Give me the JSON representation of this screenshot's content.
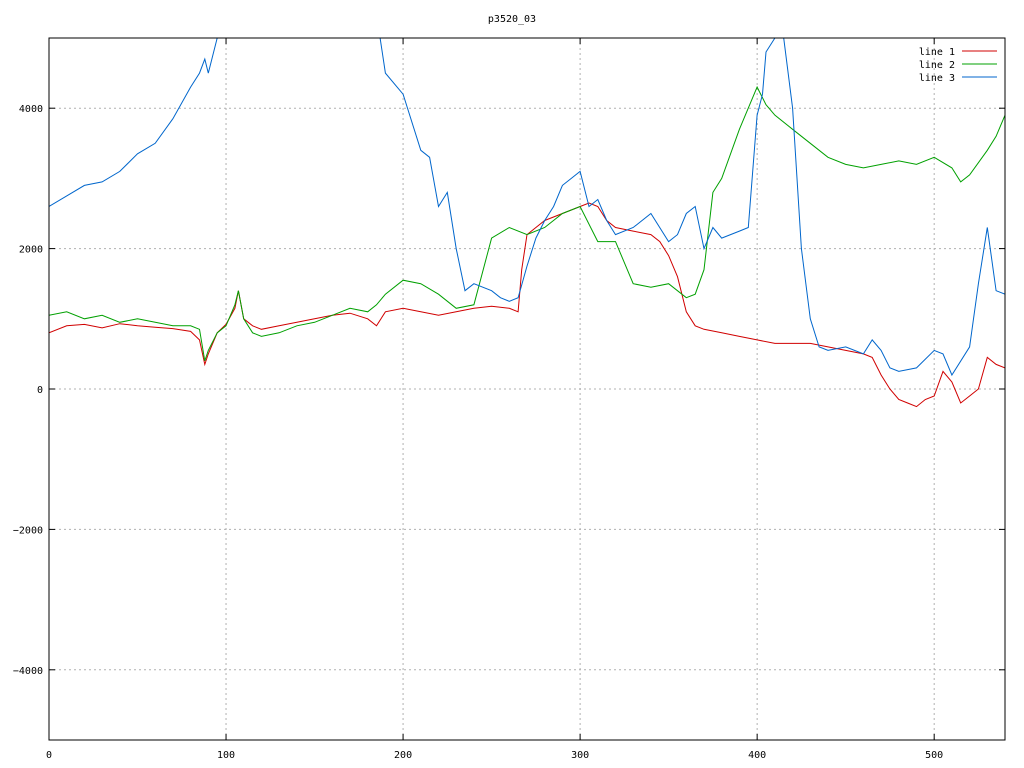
{
  "chart_data": {
    "type": "line",
    "title": "p3520_03",
    "xlabel": "",
    "ylabel": "",
    "xlim": [
      0,
      540
    ],
    "ylim": [
      -5000,
      5000
    ],
    "grid": true,
    "legend_position": "top-right",
    "x_ticks": [
      0,
      100,
      200,
      300,
      400,
      500
    ],
    "y_ticks": [
      -4000,
      -2000,
      0,
      2000,
      4000
    ],
    "x_tick_labels": [
      "0",
      "100",
      "200",
      "300",
      "400",
      "500"
    ],
    "y_tick_labels": [
      "−4000",
      "−2000",
      "0",
      "2000",
      "4000"
    ],
    "series": [
      {
        "name": "line 1",
        "color": "#d00000",
        "x": [
          0,
          10,
          20,
          30,
          40,
          50,
          60,
          70,
          80,
          85,
          88,
          90,
          95,
          100,
          105,
          107,
          110,
          115,
          120,
          130,
          140,
          150,
          160,
          170,
          180,
          185,
          190,
          200,
          210,
          220,
          230,
          240,
          250,
          260,
          265,
          267,
          270,
          275,
          280,
          290,
          295,
          300,
          305,
          310,
          315,
          320,
          330,
          340,
          345,
          350,
          355,
          360,
          365,
          370,
          380,
          390,
          400,
          410,
          420,
          430,
          440,
          450,
          460,
          465,
          470,
          475,
          480,
          485,
          490,
          495,
          500,
          505,
          510,
          515,
          520,
          525,
          530,
          535,
          540
        ],
        "y": [
          800,
          900,
          920,
          870,
          930,
          900,
          880,
          860,
          820,
          700,
          350,
          500,
          800,
          920,
          1150,
          1400,
          1000,
          900,
          850,
          900,
          950,
          1000,
          1050,
          1080,
          1000,
          900,
          1100,
          1150,
          1100,
          1050,
          1100,
          1150,
          1180,
          1150,
          1100,
          1700,
          2200,
          2300,
          2400,
          2500,
          2550,
          2600,
          2650,
          2600,
          2400,
          2300,
          2250,
          2200,
          2100,
          1900,
          1600,
          1100,
          900,
          850,
          800,
          750,
          700,
          650,
          650,
          650,
          600,
          550,
          500,
          450,
          200,
          0,
          -150,
          -200,
          -250,
          -150,
          -100,
          250,
          100,
          -200,
          -100,
          0,
          450,
          350,
          300
        ]
      },
      {
        "name": "line 2",
        "color": "#00a000",
        "x": [
          0,
          10,
          20,
          30,
          40,
          50,
          60,
          70,
          80,
          85,
          88,
          90,
          95,
          100,
          105,
          107,
          110,
          115,
          120,
          130,
          140,
          150,
          160,
          170,
          180,
          185,
          190,
          200,
          210,
          220,
          230,
          240,
          250,
          260,
          270,
          280,
          290,
          300,
          310,
          320,
          330,
          340,
          350,
          360,
          365,
          370,
          375,
          380,
          390,
          400,
          405,
          410,
          420,
          430,
          440,
          450,
          460,
          470,
          480,
          490,
          500,
          510,
          515,
          520,
          530,
          535,
          540
        ],
        "y": [
          1050,
          1100,
          1000,
          1050,
          950,
          1000,
          950,
          900,
          900,
          850,
          400,
          550,
          800,
          900,
          1200,
          1400,
          1000,
          800,
          750,
          800,
          900,
          950,
          1050,
          1150,
          1100,
          1200,
          1350,
          1550,
          1500,
          1350,
          1150,
          1200,
          2150,
          2300,
          2200,
          2300,
          2500,
          2600,
          2100,
          2100,
          1500,
          1450,
          1500,
          1300,
          1350,
          1700,
          2800,
          3000,
          3700,
          4300,
          4050,
          3900,
          3700,
          3500,
          3300,
          3200,
          3150,
          3200,
          3250,
          3200,
          3300,
          3150,
          2950,
          3050,
          3400,
          3600,
          3900
        ]
      },
      {
        "name": "line 3",
        "color": "#0066cc",
        "x": [
          0,
          10,
          20,
          30,
          40,
          50,
          60,
          70,
          80,
          85,
          88,
          90,
          95,
          100,
          105,
          110,
          115,
          120,
          130,
          140,
          150,
          160,
          170,
          180,
          185,
          187,
          190,
          200,
          210,
          215,
          220,
          225,
          230,
          235,
          240,
          250,
          255,
          260,
          265,
          270,
          275,
          280,
          285,
          290,
          295,
          300,
          305,
          310,
          315,
          320,
          330,
          340,
          350,
          355,
          360,
          365,
          370,
          375,
          380,
          390,
          395,
          400,
          403,
          405,
          410,
          415,
          420,
          425,
          430,
          435,
          440,
          450,
          460,
          465,
          470,
          475,
          480,
          490,
          500,
          505,
          510,
          520,
          525,
          530,
          535,
          540
        ],
        "y": [
          2600,
          2750,
          2900,
          2950,
          3100,
          3350,
          3500,
          3850,
          4300,
          4500,
          4700,
          4500,
          5000,
          5000,
          5000,
          5000,
          5000,
          5000,
          5000,
          5000,
          5000,
          5000,
          5000,
          5000,
          5000,
          5000,
          4500,
          4200,
          3400,
          3300,
          2600,
          2800,
          2000,
          1400,
          1500,
          1400,
          1300,
          1250,
          1300,
          1750,
          2150,
          2400,
          2600,
          2900,
          3000,
          3100,
          2600,
          2700,
          2400,
          2200,
          2300,
          2500,
          2100,
          2200,
          2500,
          2600,
          2000,
          2300,
          2150,
          2250,
          2300,
          3900,
          4200,
          4800,
          5000,
          5000,
          4000,
          2000,
          1000,
          600,
          550,
          600,
          500,
          700,
          550,
          300,
          250,
          300,
          550,
          500,
          200,
          600,
          1500,
          2300,
          1400,
          1350
        ]
      }
    ]
  }
}
